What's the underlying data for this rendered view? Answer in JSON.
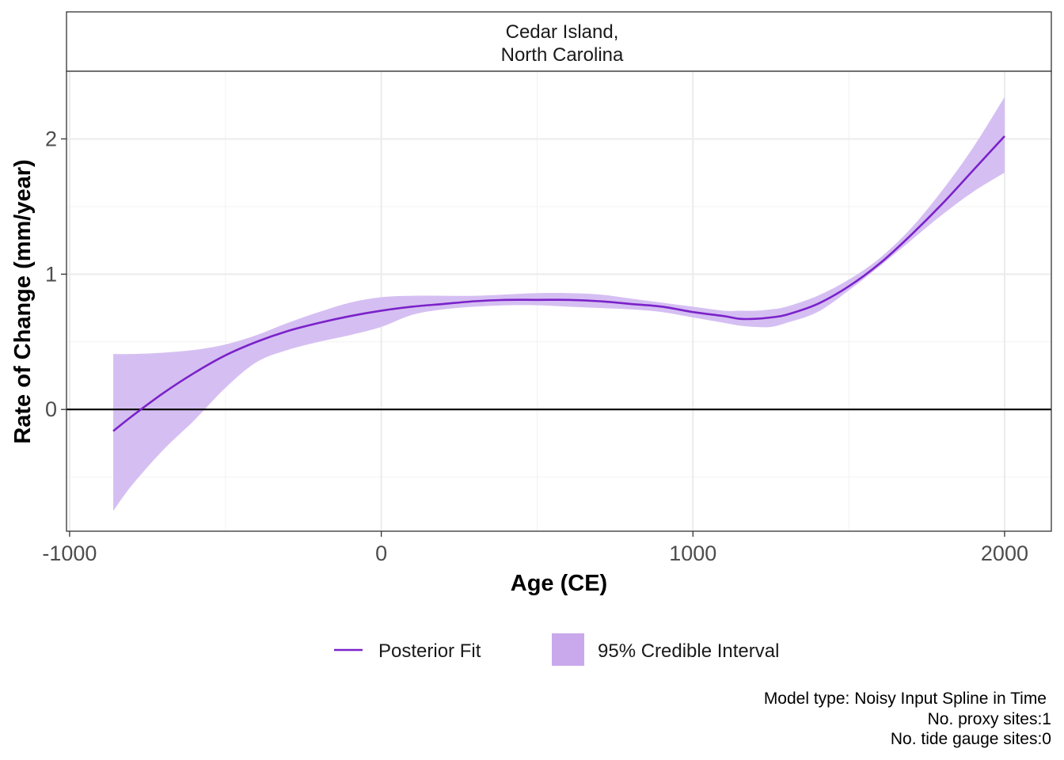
{
  "chart_data": {
    "type": "line",
    "facet_label": [
      "Cedar Island,",
      "North Carolina"
    ],
    "xlabel": "Age (CE)",
    "ylabel": "Rate of Change (mm/year)",
    "xlim": [
      -1010,
      2150
    ],
    "ylim": [
      -0.9,
      2.5
    ],
    "x_ticks": [
      -1000,
      0,
      1000,
      2000
    ],
    "x_tick_labels": [
      "-1000",
      "0",
      "1000",
      "2000"
    ],
    "y_ticks": [
      0,
      1,
      2
    ],
    "y_tick_labels": [
      "0",
      "1",
      "2"
    ],
    "reference_line": {
      "y": 0,
      "color": "#000000"
    },
    "grid": true,
    "legend_position": "bottom",
    "colors": {
      "fit": "#7B22C9",
      "band": "#D5BFF2",
      "band_legend": "#C9A8EC"
    },
    "series": [
      {
        "name": "Posterior Fit",
        "kind": "line",
        "x": [
          -860,
          -800,
          -700,
          -600,
          -500,
          -400,
          -300,
          -200,
          -100,
          0,
          100,
          200,
          300,
          400,
          500,
          600,
          700,
          800,
          900,
          1000,
          1100,
          1150,
          1200,
          1250,
          1300,
          1400,
          1500,
          1600,
          1700,
          1800,
          1900,
          2000
        ],
        "y": [
          -0.16,
          -0.05,
          0.12,
          0.27,
          0.4,
          0.5,
          0.58,
          0.64,
          0.69,
          0.73,
          0.76,
          0.78,
          0.8,
          0.81,
          0.81,
          0.81,
          0.8,
          0.78,
          0.76,
          0.72,
          0.69,
          0.67,
          0.67,
          0.68,
          0.7,
          0.78,
          0.91,
          1.08,
          1.29,
          1.52,
          1.77,
          2.02
        ]
      },
      {
        "name": "95% Credible Interval",
        "kind": "band",
        "x": [
          -860,
          -800,
          -700,
          -600,
          -500,
          -400,
          -300,
          -200,
          -100,
          0,
          100,
          200,
          300,
          400,
          500,
          600,
          700,
          800,
          900,
          1000,
          1100,
          1150,
          1200,
          1250,
          1300,
          1400,
          1500,
          1600,
          1700,
          1800,
          1900,
          2000
        ],
        "lower": [
          -0.75,
          -0.56,
          -0.3,
          -0.08,
          0.16,
          0.35,
          0.44,
          0.5,
          0.55,
          0.61,
          0.7,
          0.74,
          0.76,
          0.77,
          0.77,
          0.76,
          0.75,
          0.74,
          0.72,
          0.68,
          0.64,
          0.62,
          0.61,
          0.61,
          0.64,
          0.72,
          0.88,
          1.06,
          1.25,
          1.44,
          1.61,
          1.75
        ],
        "upper": [
          0.41,
          0.41,
          0.42,
          0.44,
          0.48,
          0.55,
          0.64,
          0.72,
          0.79,
          0.83,
          0.84,
          0.84,
          0.84,
          0.85,
          0.86,
          0.86,
          0.85,
          0.82,
          0.79,
          0.76,
          0.73,
          0.73,
          0.73,
          0.74,
          0.76,
          0.84,
          0.96,
          1.12,
          1.34,
          1.62,
          1.94,
          2.31
        ]
      }
    ]
  },
  "legend": {
    "fit_label": "Posterior Fit",
    "band_label": "95% Credible Interval"
  },
  "caption": [
    "Model type: Noisy Input Spline in Time",
    "No. proxy sites:1",
    "No. tide gauge sites:0"
  ]
}
